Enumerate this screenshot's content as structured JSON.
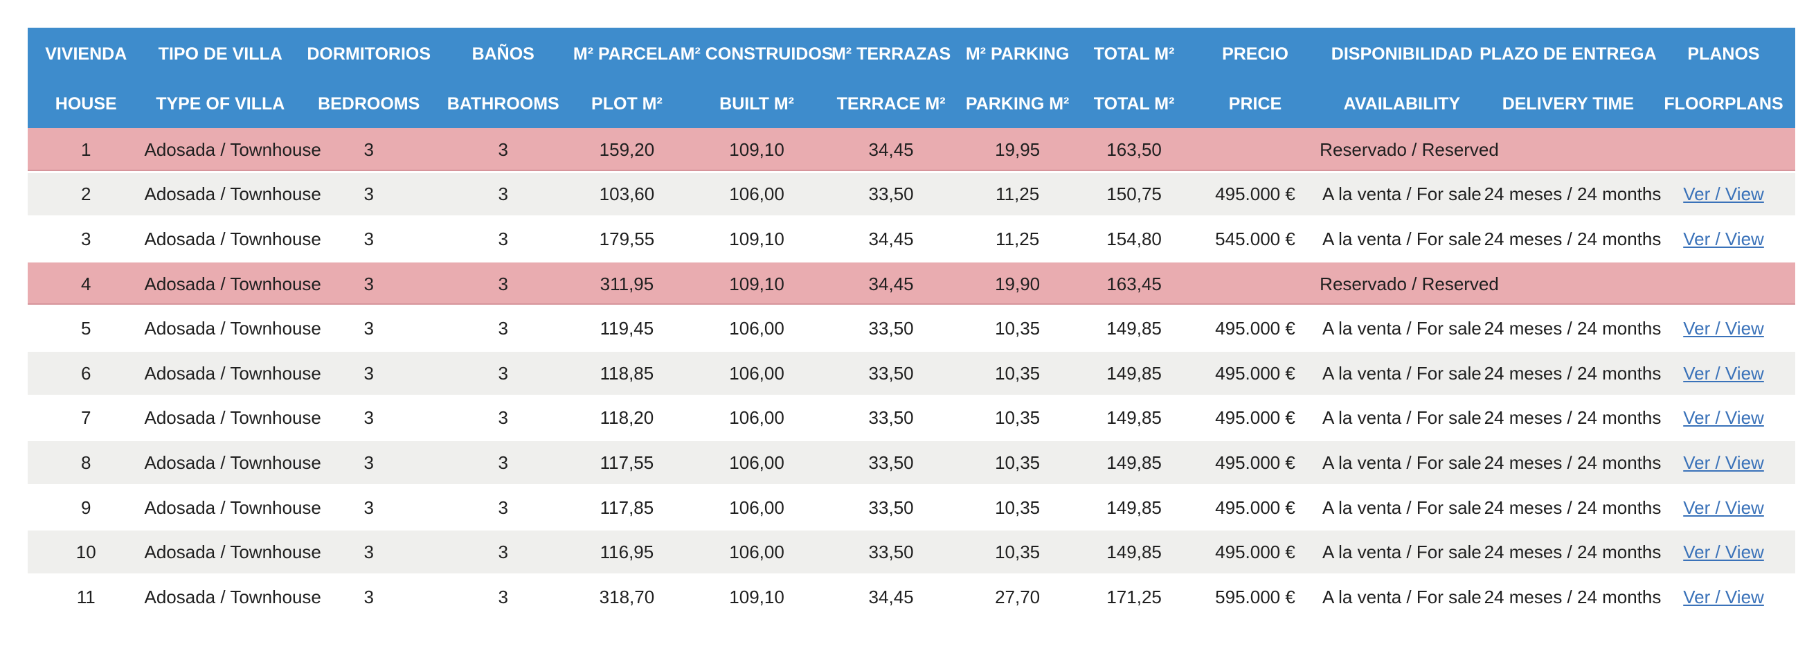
{
  "colors": {
    "header_bg": "#3E8CCC",
    "header_text": "#FFFFFF",
    "reserved_row_bg": "#E9ACB0",
    "banded_row_bg": "#EFEFED",
    "plain_row_bg": "#FFFFFF",
    "body_text": "#1F1F1F",
    "link_color": "#3A72B9"
  },
  "table": {
    "columns": [
      {
        "label_es": "VIVIENDA",
        "label_en": "HOUSE"
      },
      {
        "label_es": "TIPO DE VILLA",
        "label_en": "TYPE OF VILLA"
      },
      {
        "label_es": "DORMITORIOS",
        "label_en": "BEDROOMS"
      },
      {
        "label_es": "BAÑOS",
        "label_en": "BATHROOMS"
      },
      {
        "label_es": "M² PARCELA",
        "label_en": "PLOT M²"
      },
      {
        "label_es": "M² CONSTRUIDOS",
        "label_en": "BUILT M²"
      },
      {
        "label_es": "M² TERRAZAS",
        "label_en": "TERRACE M²"
      },
      {
        "label_es": "M² PARKING",
        "label_en": "PARKING M²"
      },
      {
        "label_es": "TOTAL M²",
        "label_en": "TOTAL M²"
      },
      {
        "label_es": "PRECIO",
        "label_en": "PRICE"
      },
      {
        "label_es": "DISPONIBILIDAD",
        "label_en": "AVAILABILITY"
      },
      {
        "label_es": "PLAZO DE ENTREGA",
        "label_en": "DELIVERY TIME"
      },
      {
        "label_es": "PLANOS",
        "label_en": "FLOORPLANS"
      }
    ],
    "rows": [
      {
        "reserved": true,
        "cells": [
          "1",
          "Adosada / Townhouse",
          "3",
          "3",
          "159,20",
          "109,10",
          "34,45",
          "19,95",
          "163,50",
          "",
          "Reservado / Reserved",
          "",
          ""
        ]
      },
      {
        "reserved": false,
        "cells": [
          "2",
          "Adosada / Townhouse",
          "3",
          "3",
          "103,60",
          "106,00",
          "33,50",
          "11,25",
          "150,75",
          "495.000 €",
          "A la venta / For sale",
          "24 meses / 24 months",
          "Ver / View"
        ]
      },
      {
        "reserved": false,
        "cells": [
          "3",
          "Adosada / Townhouse",
          "3",
          "3",
          "179,55",
          "109,10",
          "34,45",
          "11,25",
          "154,80",
          "545.000 €",
          "A la venta / For sale",
          "24 meses / 24 months",
          "Ver / View"
        ]
      },
      {
        "reserved": true,
        "cells": [
          "4",
          "Adosada / Townhouse",
          "3",
          "3",
          "311,95",
          "109,10",
          "34,45",
          "19,90",
          "163,45",
          "",
          "Reservado / Reserved",
          "",
          ""
        ]
      },
      {
        "reserved": false,
        "cells": [
          "5",
          "Adosada / Townhouse",
          "3",
          "3",
          "119,45",
          "106,00",
          "33,50",
          "10,35",
          "149,85",
          "495.000 €",
          "A la venta / For sale",
          "24 meses / 24 months",
          "Ver / View"
        ]
      },
      {
        "reserved": false,
        "cells": [
          "6",
          "Adosada / Townhouse",
          "3",
          "3",
          "118,85",
          "106,00",
          "33,50",
          "10,35",
          "149,85",
          "495.000 €",
          "A la venta / For sale",
          "24 meses / 24 months",
          "Ver / View"
        ]
      },
      {
        "reserved": false,
        "cells": [
          "7",
          "Adosada / Townhouse",
          "3",
          "3",
          "118,20",
          "106,00",
          "33,50",
          "10,35",
          "149,85",
          "495.000 €",
          "A la venta / For sale",
          "24 meses / 24 months",
          "Ver / View"
        ]
      },
      {
        "reserved": false,
        "cells": [
          "8",
          "Adosada / Townhouse",
          "3",
          "3",
          "117,55",
          "106,00",
          "33,50",
          "10,35",
          "149,85",
          "495.000 €",
          "A la venta / For sale",
          "24 meses / 24 months",
          "Ver / View"
        ]
      },
      {
        "reserved": false,
        "cells": [
          "9",
          "Adosada / Townhouse",
          "3",
          "3",
          "117,85",
          "106,00",
          "33,50",
          "10,35",
          "149,85",
          "495.000 €",
          "A la venta / For sale",
          "24 meses / 24 months",
          "Ver / View"
        ]
      },
      {
        "reserved": false,
        "cells": [
          "10",
          "Adosada / Townhouse",
          "3",
          "3",
          "116,95",
          "106,00",
          "33,50",
          "10,35",
          "149,85",
          "495.000 €",
          "A la venta / For sale",
          "24 meses / 24 months",
          "Ver / View"
        ]
      },
      {
        "reserved": false,
        "cells": [
          "11",
          "Adosada / Townhouse",
          "3",
          "3",
          "318,70",
          "109,10",
          "34,45",
          "27,70",
          "171,25",
          "595.000 €",
          "A la venta / For sale",
          "24 meses / 24 months",
          "Ver / View"
        ]
      }
    ]
  }
}
